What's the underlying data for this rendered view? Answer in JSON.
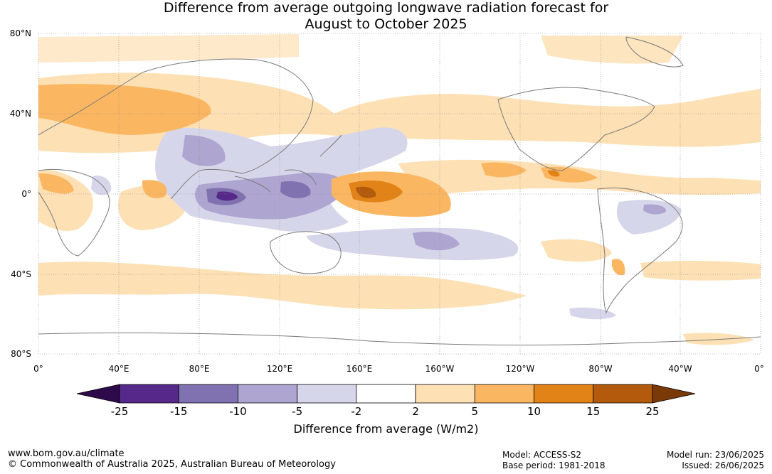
{
  "title_line1": "Difference from average outgoing longwave radiation forecast for",
  "title_line2": "August to October 2025",
  "lat_labels": [
    "80°N",
    "40°N",
    "0°",
    "40°S",
    "80°S"
  ],
  "lon_labels": [
    "0°",
    "40°E",
    "80°E",
    "120°E",
    "160°E",
    "160°W",
    "120°W",
    "80°W",
    "40°W",
    "0°"
  ],
  "colorbar": {
    "title": "Difference from average (W/m2)",
    "ticks": [
      "-25",
      "-15",
      "-10",
      "-5",
      "-2",
      "2",
      "5",
      "10",
      "15",
      "25"
    ],
    "colors": [
      "#2e0a4a",
      "#55288a",
      "#8072b0",
      "#aea6d1",
      "#d6d6ea",
      "#ffffff",
      "#fde0b4",
      "#fbb662",
      "#e28317",
      "#b35a0c",
      "#7a3a08"
    ]
  },
  "footer": {
    "url": "www.bom.gov.au/climate",
    "copyright": "© Commonwealth of Australia 2025, Australian Bureau of Meteorology",
    "model": "Model: ACCESS-S2",
    "base_period": "Base period: 1981-2018",
    "model_run": "Model run: 23/06/2025",
    "issued": "Issued: 26/06/2025"
  }
}
